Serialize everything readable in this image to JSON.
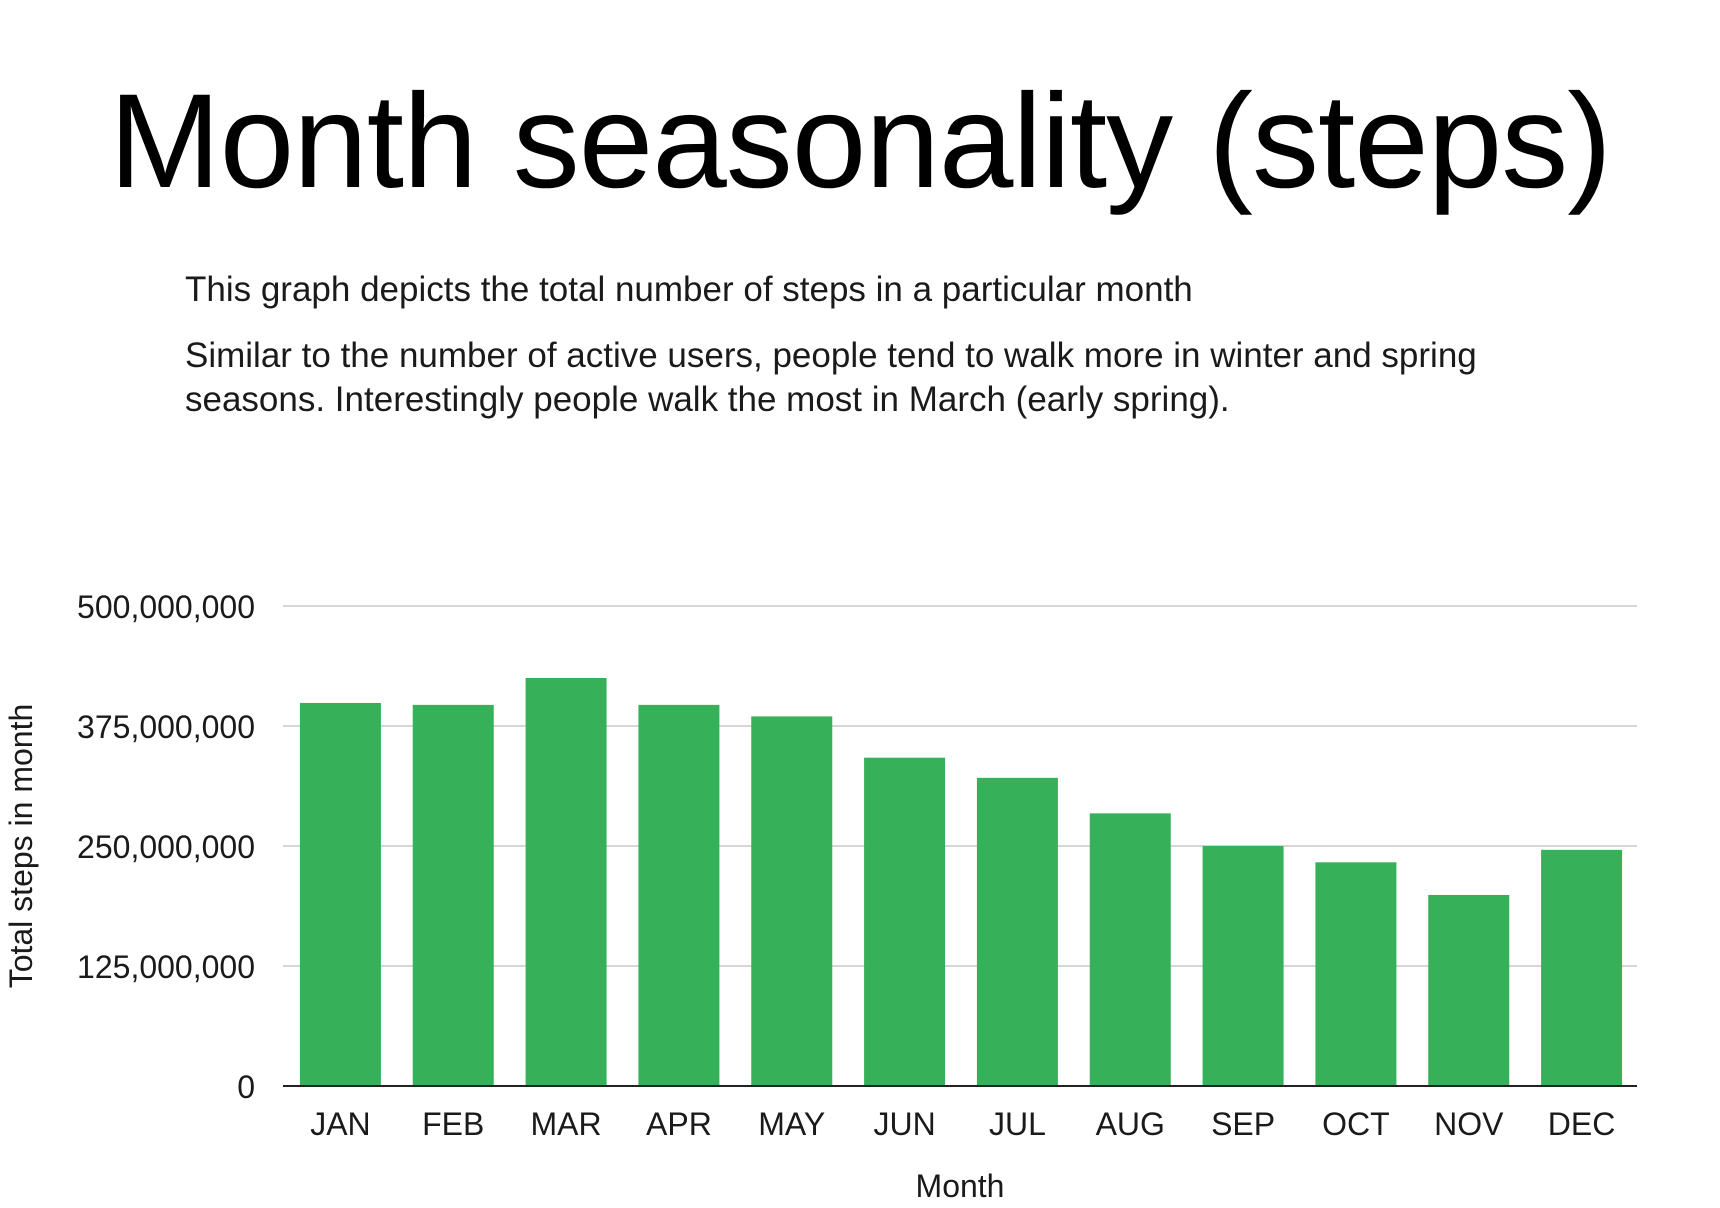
{
  "title": "Month seasonality (steps)",
  "description": {
    "line1": "This graph depicts the total number of steps in a particular month",
    "line2": "Similar to the number of active users, people tend to walk more in winter and spring seasons. Interestingly people walk the most in March (early spring)."
  },
  "colors": {
    "bar": "#37b05a",
    "grid": "#c8c8c8",
    "axis": "#222222",
    "text": "#1a1a1a"
  },
  "chart_data": {
    "type": "bar",
    "xlabel": "Month",
    "ylabel": "Total steps in month",
    "ylim": [
      0,
      500000000
    ],
    "yticks": [
      0,
      125000000,
      250000000,
      375000000,
      500000000
    ],
    "ytick_labels": [
      "0",
      "125,000,000",
      "250,000,000",
      "375,000,000",
      "500,000,000"
    ],
    "grid": true,
    "legend": "none",
    "categories": [
      "JAN",
      "FEB",
      "MAR",
      "APR",
      "MAY",
      "JUN",
      "JUL",
      "AUG",
      "SEP",
      "OCT",
      "NOV",
      "DEC"
    ],
    "values": [
      399000000,
      397000000,
      425000000,
      397000000,
      385000000,
      342000000,
      321000000,
      284000000,
      250000000,
      233000000,
      199000000,
      246000000
    ]
  }
}
